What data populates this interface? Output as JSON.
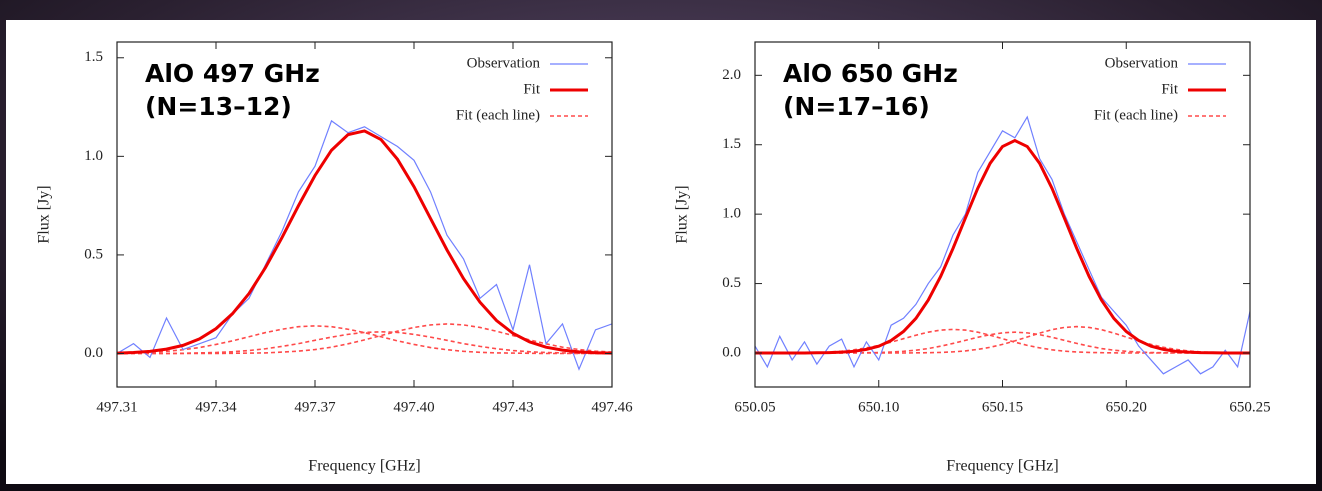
{
  "chart_data": [
    {
      "type": "line",
      "xlabel": "Frequency [GHz]",
      "ylabel": "Flux [Jy]",
      "annotation": [
        "AlO 497 GHz",
        "(N=13–12)"
      ],
      "xlim": [
        497.31,
        497.46
      ],
      "ylim": [
        -0.17,
        1.58
      ],
      "xticks": [
        497.31,
        497.34,
        497.37,
        {
          "value": 497.4,
          "label": "497.40"
        },
        497.43,
        497.46
      ],
      "yticks": [
        {
          "value": 0,
          "label": "0.0"
        },
        {
          "value": 0.5,
          "label": "0.5"
        },
        {
          "value": 1,
          "label": "1.0"
        },
        {
          "value": 1.5,
          "label": "1.5"
        }
      ],
      "x": [
        497.31,
        497.315,
        497.32,
        497.325,
        497.33,
        497.335,
        497.34,
        497.345,
        497.35,
        497.355,
        497.36,
        497.365,
        497.37,
        497.375,
        497.38,
        497.385,
        497.39,
        497.395,
        497.4,
        497.405,
        497.41,
        497.415,
        497.42,
        497.425,
        497.43,
        497.435,
        497.44,
        497.445,
        497.45,
        497.455,
        497.46
      ],
      "series": [
        {
          "name": "Observation",
          "color": "#7080ff",
          "values": [
            0,
            0.05,
            -0.02,
            0.18,
            0.02,
            0.05,
            0.08,
            0.2,
            0.28,
            0.45,
            0.62,
            0.82,
            0.95,
            1.18,
            1.12,
            1.15,
            1.1,
            1.05,
            0.98,
            0.82,
            0.6,
            0.48,
            0.28,
            0.35,
            0.12,
            0.45,
            0.05,
            0.15,
            -0.08,
            0.12,
            0.15
          ]
        },
        {
          "name": "Fit",
          "color": "#ee0000",
          "values": [
            0.002,
            0.005,
            0.011,
            0.022,
            0.041,
            0.074,
            0.126,
            0.202,
            0.304,
            0.436,
            0.588,
            0.75,
            0.903,
            1.031,
            1.11,
            1.129,
            1.085,
            0.985,
            0.846,
            0.685,
            0.525,
            0.38,
            0.26,
            0.167,
            0.102,
            0.059,
            0.032,
            0.017,
            0.008,
            0.004,
            0.002
          ]
        },
        {
          "name": "Fit (each line)",
          "color": "#ff4a4a",
          "dashed": true,
          "components": [
            [
              0.002,
              0.003,
              0.006,
              0.011,
              0.019,
              0.03,
              0.046,
              0.064,
              0.085,
              0.106,
              0.123,
              0.136,
              0.14,
              0.136,
              0.123,
              0.106,
              0.085,
              0.064,
              0.046,
              0.03,
              0.019,
              0.011,
              0.006,
              0.003,
              0.002,
              0.001,
              0,
              0,
              0,
              0,
              0
            ],
            [
              0,
              0,
              0,
              0,
              0.001,
              0.003,
              0.005,
              0.009,
              0.015,
              0.024,
              0.036,
              0.05,
              0.067,
              0.083,
              0.097,
              0.107,
              0.11,
              0.107,
              0.097,
              0.083,
              0.067,
              0.05,
              0.036,
              0.024,
              0.015,
              0.009,
              0.005,
              0.003,
              0.001,
              0,
              0
            ],
            [
              0,
              0,
              0,
              0,
              0,
              0,
              0,
              0.001,
              0.002,
              0.003,
              0.007,
              0.012,
              0.02,
              0.032,
              0.049,
              0.069,
              0.091,
              0.113,
              0.132,
              0.145,
              0.15,
              0.145,
              0.132,
              0.113,
              0.091,
              0.069,
              0.049,
              0.032,
              0.02,
              0.012,
              0.007
            ]
          ]
        }
      ]
    },
    {
      "type": "line",
      "xlabel": "Frequency [GHz]",
      "ylabel": "Flux [Jy]",
      "annotation": [
        "AlO 650 GHz",
        "(N=17–16)"
      ],
      "xlim": [
        650.05,
        650.25
      ],
      "ylim": [
        -0.245,
        2.24
      ],
      "xticks": [
        650.05,
        {
          "value": 650.1,
          "label": "650.10"
        },
        650.15,
        {
          "value": 650.2,
          "label": "650.20"
        },
        650.25
      ],
      "yticks": [
        {
          "value": 0,
          "label": "0.0"
        },
        {
          "value": 0.5,
          "label": "0.5"
        },
        {
          "value": 1,
          "label": "1.0"
        },
        {
          "value": 1.5,
          "label": "1.5"
        },
        {
          "value": 2,
          "label": "2.0"
        }
      ],
      "x": [
        650.05,
        650.055,
        650.06,
        650.065,
        650.07,
        650.075,
        650.08,
        650.085,
        650.09,
        650.095,
        650.1,
        650.105,
        650.11,
        650.115,
        650.12,
        650.125,
        650.13,
        650.135,
        650.14,
        650.145,
        650.15,
        650.155,
        650.16,
        650.165,
        650.17,
        650.175,
        650.18,
        650.185,
        650.19,
        650.195,
        650.2,
        650.205,
        650.21,
        650.215,
        650.22,
        650.225,
        650.23,
        650.235,
        650.24,
        650.245,
        650.25
      ],
      "series": [
        {
          "name": "Observation",
          "color": "#7080ff",
          "values": [
            0.05,
            -0.1,
            0.12,
            -0.05,
            0.08,
            -0.08,
            0.05,
            0.1,
            -0.1,
            0.08,
            -0.05,
            0.2,
            0.25,
            0.35,
            0.5,
            0.62,
            0.85,
            1.0,
            1.3,
            1.45,
            1.6,
            1.55,
            1.7,
            1.4,
            1.25,
            1.0,
            0.8,
            0.6,
            0.4,
            0.3,
            0.2,
            0.05,
            -0.05,
            -0.15,
            -0.1,
            -0.05,
            -0.15,
            -0.1,
            0.02,
            -0.1,
            0.3
          ]
        },
        {
          "name": "Fit",
          "color": "#ee0000",
          "values": [
            0,
            0,
            0,
            0,
            0,
            0.002,
            0.003,
            0.006,
            0.012,
            0.026,
            0.049,
            0.09,
            0.155,
            0.249,
            0.381,
            0.551,
            0.753,
            0.972,
            1.186,
            1.366,
            1.487,
            1.53,
            1.487,
            1.366,
            1.186,
            0.972,
            0.753,
            0.551,
            0.381,
            0.249,
            0.155,
            0.09,
            0.049,
            0.026,
            0.012,
            0.006,
            0.003,
            0.002,
            0,
            0,
            0
          ]
        },
        {
          "name": "Fit (each line)",
          "color": "#ff4a4a",
          "dashed": true,
          "components": [
            [
              0,
              0,
              0,
              0.001,
              0.002,
              0.004,
              0.007,
              0.013,
              0.023,
              0.037,
              0.055,
              0.078,
              0.103,
              0.128,
              0.15,
              0.165,
              0.17,
              0.165,
              0.15,
              0.128,
              0.103,
              0.078,
              0.055,
              0.037,
              0.023,
              0.013,
              0.007,
              0.004,
              0.002,
              0.001,
              0,
              0,
              0,
              0,
              0,
              0,
              0,
              0,
              0,
              0,
              0
            ],
            [
              0,
              0,
              0,
              0,
              0,
              0,
              0,
              0,
              0.001,
              0.002,
              0.003,
              0.007,
              0.012,
              0.02,
              0.032,
              0.049,
              0.069,
              0.091,
              0.113,
              0.132,
              0.145,
              0.15,
              0.145,
              0.132,
              0.113,
              0.091,
              0.069,
              0.049,
              0.032,
              0.02,
              0.012,
              0.007,
              0.003,
              0.002,
              0.001,
              0,
              0,
              0,
              0,
              0,
              0
            ],
            [
              0,
              0,
              0,
              0,
              0,
              0,
              0,
              0,
              0,
              0,
              0,
              0,
              0,
              0.001,
              0.002,
              0.004,
              0.008,
              0.015,
              0.026,
              0.041,
              0.062,
              0.087,
              0.115,
              0.143,
              0.168,
              0.184,
              0.19,
              0.184,
              0.168,
              0.143,
              0.115,
              0.087,
              0.062,
              0.041,
              0.026,
              0.015,
              0.008,
              0.004,
              0.002,
              0.001,
              0
            ]
          ]
        }
      ]
    }
  ]
}
